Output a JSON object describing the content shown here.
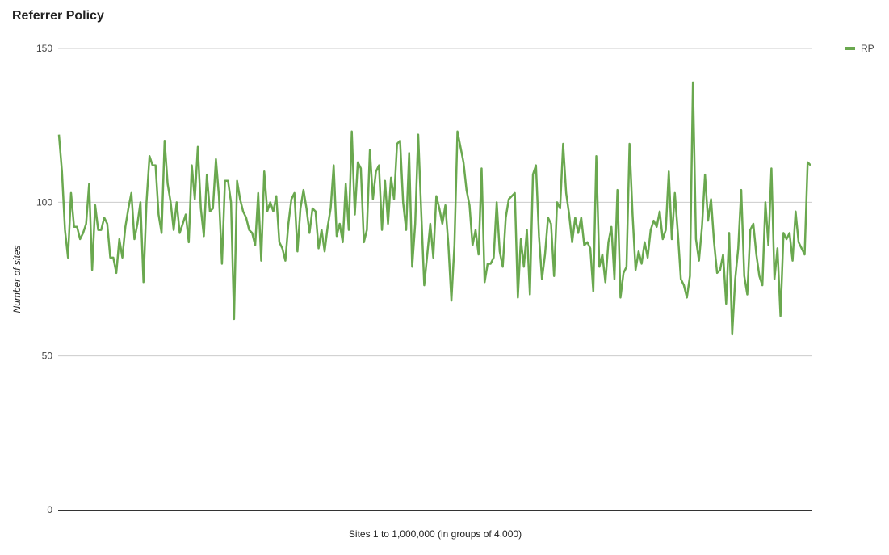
{
  "chart_data": {
    "type": "line",
    "title": "Referrer Policy",
    "xlabel": "Sites 1 to 1,000,000 (in groups of 4,000)",
    "ylabel": "Number of sites",
    "ylim": [
      0,
      150
    ],
    "yticks": [
      0,
      50,
      100,
      150
    ],
    "grid": true,
    "legend_position": "top-right",
    "series": [
      {
        "name": "RP",
        "color": "#6aa84f",
        "values": [
          122,
          110,
          91,
          82,
          103,
          92,
          92,
          88,
          90,
          93,
          106,
          78,
          99,
          91,
          91,
          95,
          93,
          82,
          82,
          77,
          88,
          82,
          92,
          98,
          103,
          88,
          93,
          100,
          74,
          100,
          115,
          112,
          112,
          96,
          90,
          120,
          106,
          100,
          91,
          100,
          90,
          93,
          96,
          87,
          112,
          101,
          118,
          98,
          89,
          109,
          97,
          98,
          114,
          102,
          80,
          107,
          107,
          100,
          62,
          107,
          101,
          97,
          95,
          91,
          90,
          86,
          103,
          81,
          110,
          97,
          100,
          97,
          102,
          87,
          85,
          81,
          93,
          101,
          103,
          84,
          98,
          104,
          98,
          90,
          98,
          97,
          85,
          91,
          84,
          92,
          98,
          112,
          89,
          93,
          87,
          106,
          91,
          123,
          96,
          113,
          111,
          87,
          91,
          117,
          101,
          110,
          112,
          91,
          107,
          93,
          108,
          101,
          119,
          120,
          100,
          91,
          116,
          79,
          93,
          122,
          97,
          73,
          83,
          93,
          82,
          102,
          98,
          93,
          99,
          86,
          68,
          86,
          123,
          118,
          113,
          104,
          99,
          86,
          91,
          83,
          111,
          74,
          80,
          80,
          82,
          100,
          84,
          79,
          95,
          101,
          102,
          103,
          69,
          88,
          79,
          91,
          70,
          109,
          112,
          89,
          75,
          83,
          95,
          93,
          76,
          100,
          98,
          119,
          103,
          96,
          87,
          95,
          90,
          95,
          86,
          87,
          85,
          71,
          115,
          79,
          83,
          74,
          87,
          92,
          75,
          104,
          69,
          77,
          79,
          119,
          96,
          78,
          84,
          80,
          87,
          82,
          91,
          94,
          92,
          97,
          88,
          91,
          110,
          88,
          103,
          90,
          75,
          73,
          69,
          76,
          139,
          88,
          81,
          92,
          109,
          94,
          101,
          87,
          77,
          78,
          83,
          67,
          90,
          57,
          75,
          85,
          104,
          76,
          70,
          91,
          93,
          83,
          76,
          73,
          100,
          86,
          111,
          75,
          85,
          63,
          90,
          88,
          90,
          81,
          97,
          87,
          85,
          83,
          113,
          112
        ]
      }
    ]
  }
}
